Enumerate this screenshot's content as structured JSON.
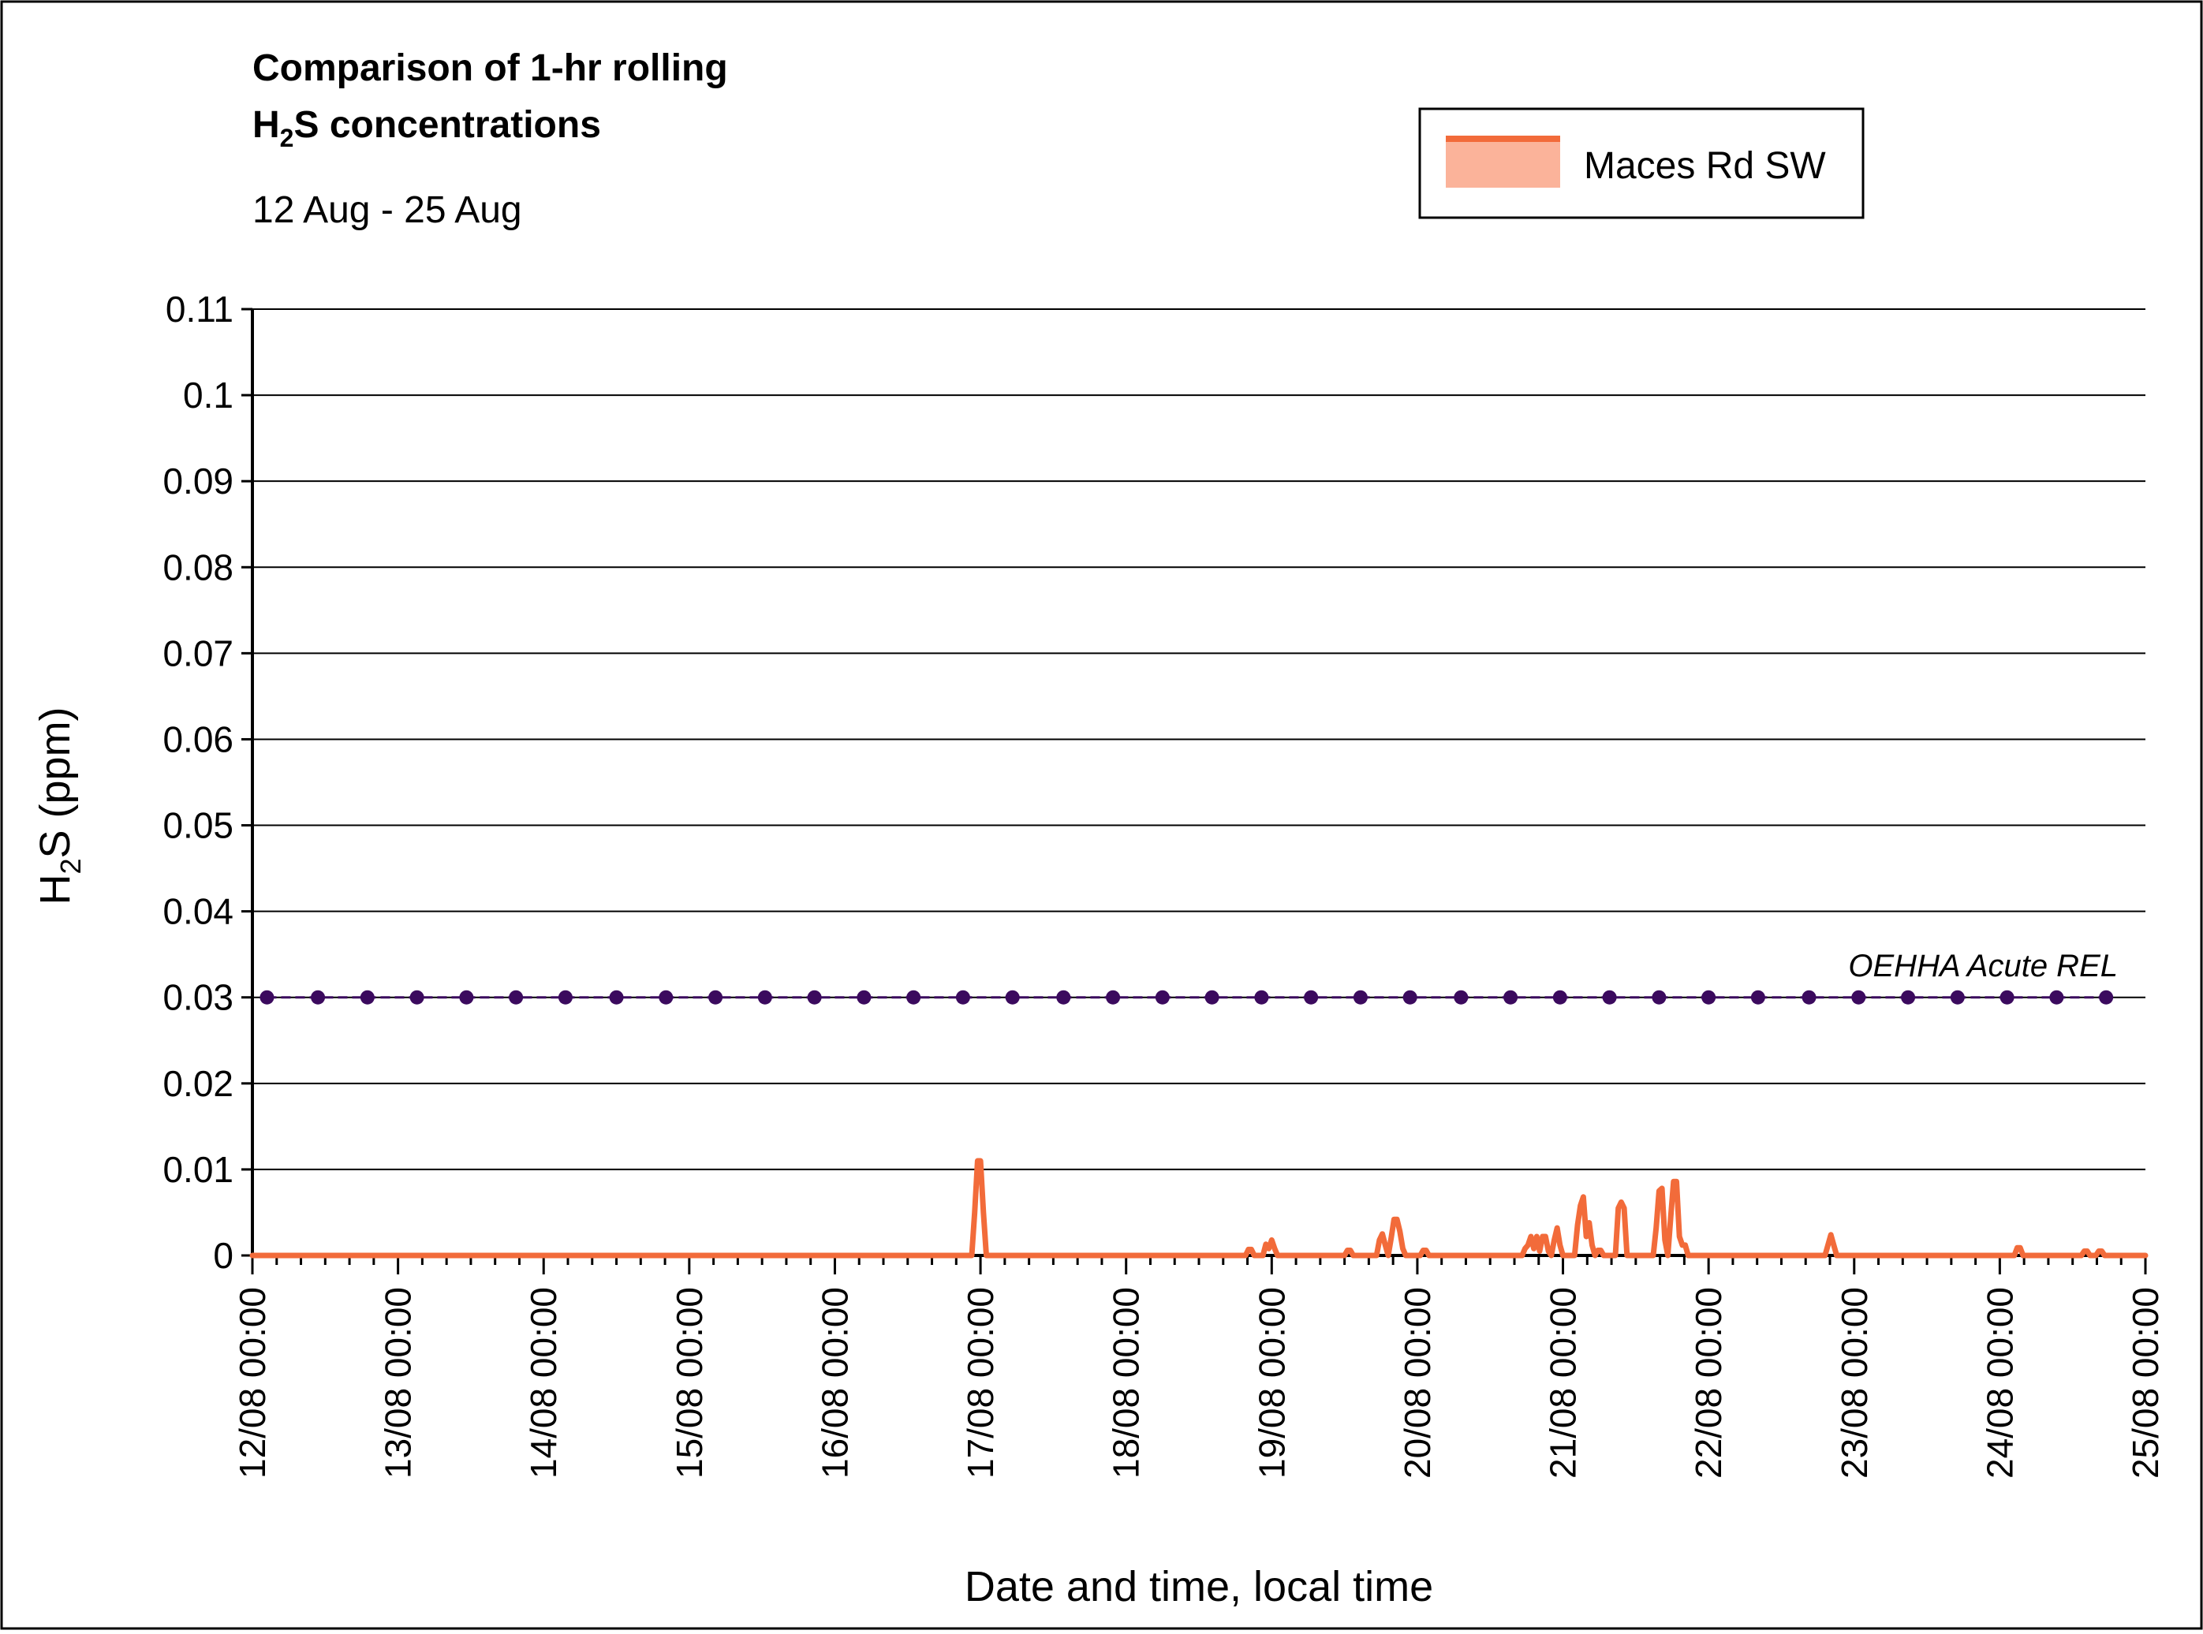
{
  "chart_data": {
    "type": "line",
    "title_line1": "Comparison of 1-hr rolling",
    "title_line2_main": "H",
    "title_line2_sub": "2",
    "title_line2_rest": "S concentrations",
    "subtitle": "12 Aug - 25 Aug",
    "xlabel": "Date and time, local time",
    "ylabel_main": "H",
    "ylabel_sub": "2",
    "ylabel_rest": "S (ppm)",
    "ylim": [
      0,
      0.11
    ],
    "yticks": [
      "0",
      "0.01",
      "0.02",
      "0.03",
      "0.04",
      "0.05",
      "0.06",
      "0.07",
      "0.08",
      "0.09",
      "0.1",
      "0.11"
    ],
    "ytick_values": [
      0,
      0.01,
      0.02,
      0.03,
      0.04,
      0.05,
      0.06,
      0.07,
      0.08,
      0.09,
      0.1,
      0.11
    ],
    "xlim_days": [
      12,
      25
    ],
    "xticks": [
      "12/08 00:00",
      "13/08 00:00",
      "14/08 00:00",
      "15/08 00:00",
      "16/08 00:00",
      "17/08 00:00",
      "18/08 00:00",
      "19/08 00:00",
      "20/08 00:00",
      "21/08 00:00",
      "22/08 00:00",
      "23/08 00:00",
      "24/08 00:00",
      "25/08 00:00"
    ],
    "grid": true,
    "legend_position": "top-right",
    "series": [
      {
        "name": "Maces Rd SW",
        "color": "#f26b3a",
        "fill_color": "#fbb39a",
        "points": [
          [
            12.0,
            0
          ],
          [
            16.94,
            0
          ],
          [
            16.96,
            0.005
          ],
          [
            16.98,
            0.011
          ],
          [
            17.0,
            0.011
          ],
          [
            17.02,
            0.005
          ],
          [
            17.04,
            0
          ],
          [
            18.82,
            0
          ],
          [
            18.84,
            0.0007
          ],
          [
            18.86,
            0.0007
          ],
          [
            18.88,
            0
          ],
          [
            18.94,
            0
          ],
          [
            18.96,
            0.0013
          ],
          [
            18.98,
            0.0008
          ],
          [
            19.0,
            0.0018
          ],
          [
            19.02,
            0.0008
          ],
          [
            19.04,
            0
          ],
          [
            19.5,
            0
          ],
          [
            19.52,
            0.0006
          ],
          [
            19.54,
            0.0006
          ],
          [
            19.56,
            0
          ],
          [
            19.72,
            0
          ],
          [
            19.74,
            0.0018
          ],
          [
            19.76,
            0.0025
          ],
          [
            19.78,
            0.0012
          ],
          [
            19.8,
            0
          ],
          [
            19.82,
            0.002
          ],
          [
            19.84,
            0.0042
          ],
          [
            19.86,
            0.0042
          ],
          [
            19.88,
            0.0028
          ],
          [
            19.9,
            0.0008
          ],
          [
            19.92,
            0
          ],
          [
            20.02,
            0
          ],
          [
            20.04,
            0.0006
          ],
          [
            20.06,
            0.0006
          ],
          [
            20.08,
            0
          ],
          [
            20.72,
            0
          ],
          [
            20.74,
            0.0008
          ],
          [
            20.76,
            0.0012
          ],
          [
            20.78,
            0.0022
          ],
          [
            20.8,
            0.0008
          ],
          [
            20.82,
            0.0022
          ],
          [
            20.84,
            0.0005
          ],
          [
            20.86,
            0.0022
          ],
          [
            20.88,
            0.0022
          ],
          [
            20.9,
            0.0005
          ],
          [
            20.92,
            0
          ],
          [
            20.94,
            0.0018
          ],
          [
            20.96,
            0.0032
          ],
          [
            20.98,
            0.0012
          ],
          [
            21.0,
            0
          ],
          [
            21.08,
            0
          ],
          [
            21.1,
            0.0035
          ],
          [
            21.12,
            0.0058
          ],
          [
            21.14,
            0.0068
          ],
          [
            21.16,
            0.0022
          ],
          [
            21.18,
            0.0038
          ],
          [
            21.2,
            0.0012
          ],
          [
            21.22,
            0
          ],
          [
            21.24,
            0.0006
          ],
          [
            21.26,
            0.0006
          ],
          [
            21.28,
            0
          ],
          [
            21.36,
            0
          ],
          [
            21.38,
            0.0055
          ],
          [
            21.4,
            0.0062
          ],
          [
            21.42,
            0.0055
          ],
          [
            21.44,
            0
          ],
          [
            21.62,
            0
          ],
          [
            21.64,
            0.0032
          ],
          [
            21.66,
            0.0075
          ],
          [
            21.68,
            0.0078
          ],
          [
            21.7,
            0.0018
          ],
          [
            21.72,
            0
          ],
          [
            21.74,
            0.0045
          ],
          [
            21.76,
            0.0086
          ],
          [
            21.78,
            0.0086
          ],
          [
            21.8,
            0.0022
          ],
          [
            21.82,
            0.0012
          ],
          [
            21.84,
            0.0012
          ],
          [
            21.86,
            0
          ],
          [
            22.8,
            0
          ],
          [
            22.82,
            0.0012
          ],
          [
            22.84,
            0.0024
          ],
          [
            22.86,
            0.0012
          ],
          [
            22.88,
            0
          ],
          [
            24.1,
            0
          ],
          [
            24.12,
            0.0009
          ],
          [
            24.14,
            0.0009
          ],
          [
            24.16,
            0
          ],
          [
            24.56,
            0
          ],
          [
            24.58,
            0.0005
          ],
          [
            24.6,
            0.0005
          ],
          [
            24.62,
            0
          ],
          [
            24.66,
            0
          ],
          [
            24.68,
            0.0005
          ],
          [
            24.7,
            0.0005
          ],
          [
            24.72,
            0
          ],
          [
            25.0,
            0
          ]
        ]
      },
      {
        "name": "OEHHA Acute REL",
        "color": "#3b0a5e",
        "value": 0.03,
        "markers": [
          12.1,
          12.45,
          12.79,
          13.13,
          13.47,
          13.81,
          14.15,
          14.5,
          14.84,
          15.18,
          15.52,
          15.86,
          16.2,
          16.54,
          16.88,
          17.22,
          17.57,
          17.91,
          18.25,
          18.59,
          18.93,
          19.27,
          19.61,
          19.95,
          20.3,
          20.64,
          20.98,
          21.32,
          21.66,
          22.0,
          22.34,
          22.69,
          23.03,
          23.37,
          23.71,
          24.05,
          24.39,
          24.73
        ]
      }
    ]
  }
}
